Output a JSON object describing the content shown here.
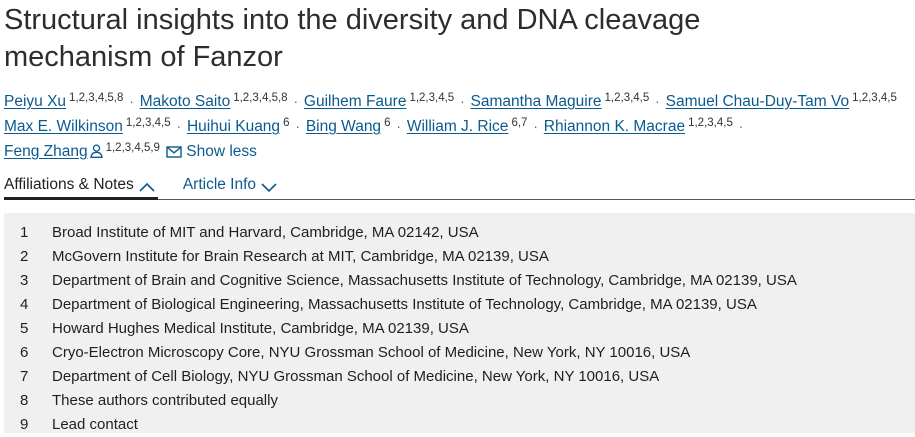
{
  "article": {
    "title": "Structural insights into the diversity and DNA cleavage mechanism of Fanzor"
  },
  "authors": [
    [
      {
        "name": "Peiyu Xu",
        "sup": "1,2,3,4,5,8"
      },
      {
        "name": "Makoto Saito",
        "sup": "1,2,3,4,5,8"
      },
      {
        "name": "Guilhem Faure",
        "sup": "1,2,3,4,5"
      },
      {
        "name": "Samantha Maguire",
        "sup": "1,2,3,4,5"
      },
      {
        "name": "Samuel Chau-Duy-Tam Vo",
        "sup": "1,2,3,4,5"
      }
    ],
    [
      {
        "name": "Max E. Wilkinson",
        "sup": "1,2,3,4,5"
      },
      {
        "name": "Huihui Kuang",
        "sup": "6"
      },
      {
        "name": "Bing Wang",
        "sup": "6"
      },
      {
        "name": "William J. Rice",
        "sup": "6,7"
      },
      {
        "name": "Rhiannon K. Macrae",
        "sup": "1,2,3,4,5"
      }
    ],
    [
      {
        "name": "Feng Zhang",
        "sup": "1,2,3,4,5,9"
      }
    ]
  ],
  "authors_extra": {
    "separator": "·",
    "show_less": "Show less"
  },
  "tabs": {
    "affiliations": "Affiliations & Notes",
    "article_info": "Article Info"
  },
  "affiliations": [
    {
      "num": "1",
      "text": "Broad Institute of MIT and Harvard, Cambridge, MA 02142, USA"
    },
    {
      "num": "2",
      "text": "McGovern Institute for Brain Research at MIT, Cambridge, MA 02139, USA"
    },
    {
      "num": "3",
      "text": "Department of Brain and Cognitive Science, Massachusetts Institute of Technology, Cambridge, MA 02139, USA"
    },
    {
      "num": "4",
      "text": "Department of Biological Engineering, Massachusetts Institute of Technology, Cambridge, MA 02139, USA"
    },
    {
      "num": "5",
      "text": "Howard Hughes Medical Institute, Cambridge, MA 02139, USA"
    },
    {
      "num": "6",
      "text": "Cryo-Electron Microscopy Core, NYU Grossman School of Medicine, New York, NY 10016, USA"
    },
    {
      "num": "7",
      "text": "Department of Cell Biology, NYU Grossman School of Medicine, New York, NY 10016, USA"
    },
    {
      "num": "8",
      "text": "These authors contributed equally"
    },
    {
      "num": "9",
      "text": "Lead contact"
    }
  ],
  "icons": {
    "person": "person-icon",
    "mail": "mail-icon",
    "chevron_up": "chevron-up-icon",
    "chevron_down": "chevron-down-icon"
  },
  "colors": {
    "link": "#0b5a8f",
    "panel_bg": "#f0f0f0"
  }
}
